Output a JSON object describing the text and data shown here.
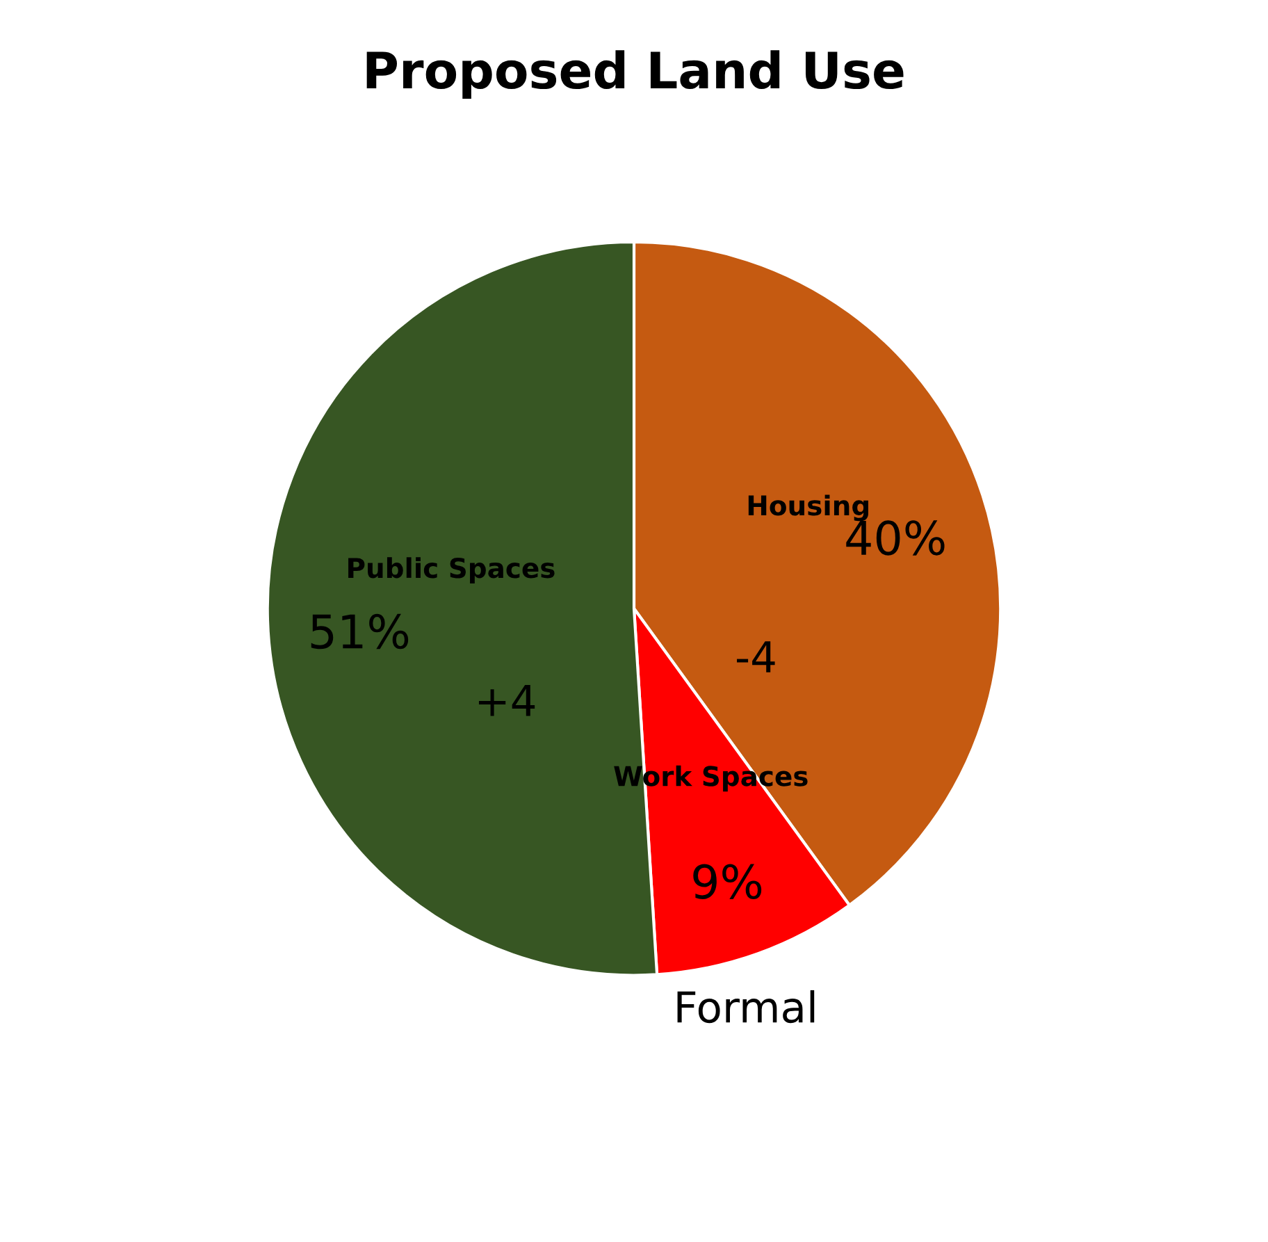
{
  "chart_data": {
    "type": "pie",
    "title": "Proposed Land Use",
    "categories": [
      "Housing",
      "Work Spaces",
      "Public Spaces"
    ],
    "values": [
      40,
      9,
      51
    ],
    "value_labels": [
      "40%",
      "9%",
      "51%"
    ],
    "colors": [
      "#c55a11",
      "#ff0000",
      "#375623"
    ],
    "annotations": [
      "-4",
      "Formal",
      "+4"
    ]
  }
}
